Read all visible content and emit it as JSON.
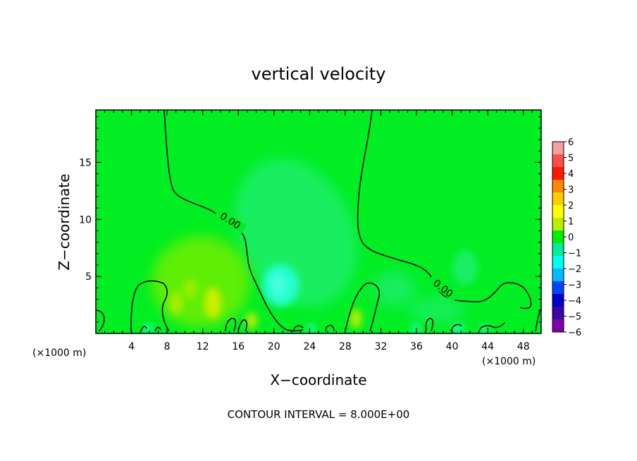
{
  "chart_data": {
    "type": "heatmap",
    "title": "vertical velocity",
    "xlabel": "X−coordinate",
    "ylabel": "Z−coordinate",
    "x_unit_left": "(×1000 m)",
    "x_unit_right": "(×1000 m)",
    "footer": "CONTOUR INTERVAL = 8.000E+00",
    "xlim": [
      0,
      50
    ],
    "ylim": [
      0,
      19.6
    ],
    "x_ticks": [
      4,
      8,
      12,
      16,
      20,
      24,
      28,
      32,
      36,
      40,
      44,
      48
    ],
    "x_tick_labels": [
      "4",
      "8",
      "12",
      "16",
      "20",
      "24",
      "28",
      "32",
      "36",
      "40",
      "44",
      "48"
    ],
    "y_ticks": [
      5,
      10,
      15
    ],
    "y_tick_labels": [
      "5",
      "10",
      "15"
    ],
    "contour_label": "0.00",
    "colorbar": {
      "levels": [
        6,
        5,
        4,
        3,
        2,
        1,
        0,
        -1,
        -2,
        -3,
        -4,
        -5,
        -6
      ],
      "labels": [
        "6",
        "5",
        "4",
        "3",
        "2",
        "1",
        "0",
        "−1",
        "−2",
        "−3",
        "−4",
        "−5",
        "−6"
      ],
      "colors": [
        "#f4a0a0",
        "#ff5050",
        "#ff1a00",
        "#ff8800",
        "#ffcc00",
        "#ffff00",
        "#bbee00",
        "#00ee00",
        "#00ee99",
        "#00ffee",
        "#00bbff",
        "#0044ff",
        "#0000cc",
        "#4000aa",
        "#8000aa"
      ]
    },
    "background_color": "#00ee22",
    "features": [
      {
        "kind": "updraft",
        "x": 14,
        "z": 3,
        "value": 1.5
      },
      {
        "kind": "updraft",
        "x": 12,
        "z": 2,
        "value": 1.2
      },
      {
        "kind": "updraft",
        "x": 30,
        "z": 1.5,
        "value": 1.0
      },
      {
        "kind": "downdraft",
        "x": 21,
        "z": 4.5,
        "value": -2.0
      },
      {
        "kind": "downdraft",
        "x": 24,
        "z": 9,
        "value": -1.0
      },
      {
        "kind": "downdraft",
        "x": 42,
        "z": 6,
        "value": -0.6
      }
    ]
  }
}
